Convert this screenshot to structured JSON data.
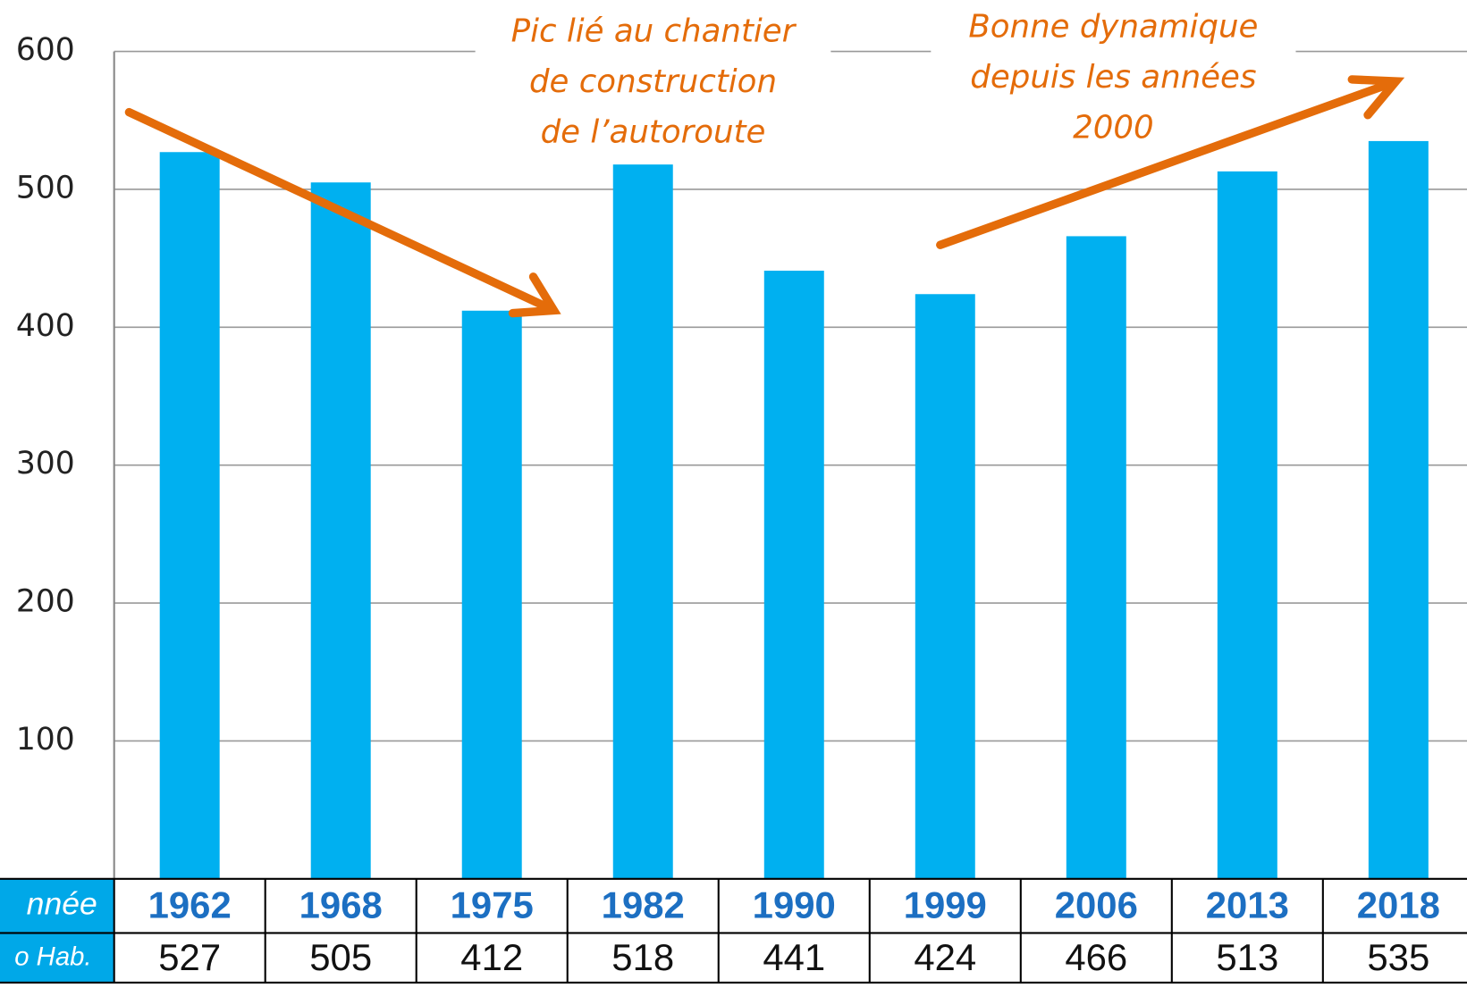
{
  "chart_data": {
    "type": "bar",
    "categories": [
      "1962",
      "1968",
      "1975",
      "1982",
      "1990",
      "1999",
      "2006",
      "2013",
      "2018"
    ],
    "values": [
      527,
      505,
      412,
      518,
      441,
      424,
      466,
      513,
      535
    ],
    "color": "#00b0f0",
    "ylim": [
      0,
      600
    ],
    "yticks": [
      100,
      200,
      300,
      400,
      500,
      600
    ],
    "grid": true,
    "row_labels": [
      "nnée",
      "o Hab."
    ],
    "annotations": [
      {
        "lines": [
          "Pic lié au chantier",
          "de construction",
          "de l’autoroute"
        ],
        "color": "#e46c0a"
      },
      {
        "lines": [
          "Bonne dynamique",
          "depuis les années",
          "2000"
        ],
        "color": "#e46c0a"
      }
    ]
  }
}
